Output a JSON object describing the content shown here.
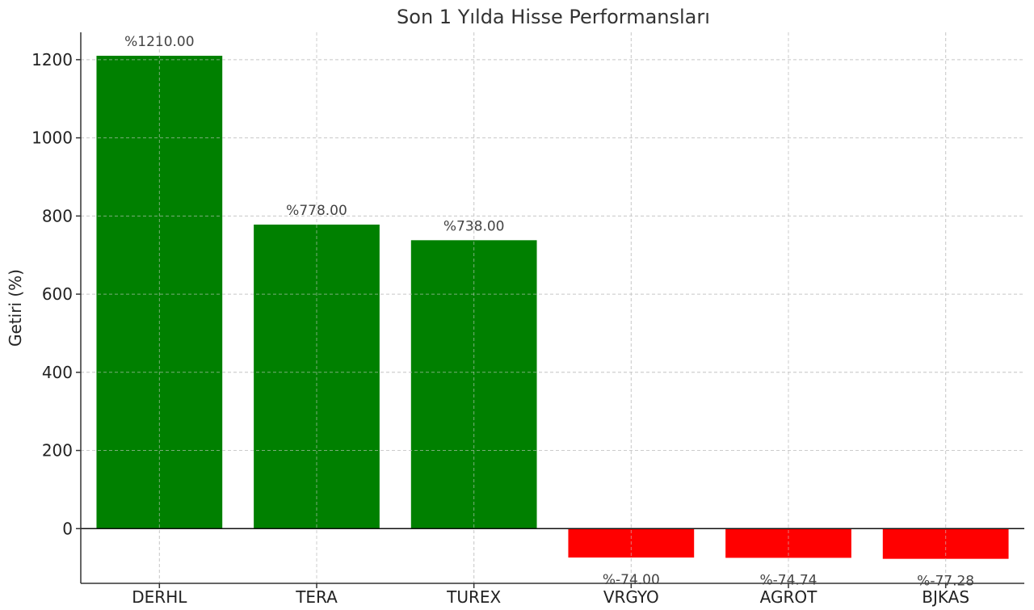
{
  "chart_data": {
    "type": "bar",
    "title": "Son 1 Yılda Hisse Performansları",
    "xlabel": "",
    "ylabel": "Getiri (%)",
    "categories": [
      "DERHL",
      "TERA",
      "TUREX",
      "VRGYO",
      "AGROT",
      "BJKAS"
    ],
    "values": [
      1210.0,
      778.0,
      738.0,
      -74.0,
      -74.74,
      -77.28
    ],
    "value_labels": [
      "%1210.00",
      "%778.00",
      "%738.00",
      "%-74.00",
      "%-74.74",
      "%-77.28"
    ],
    "ylim": [
      -140,
      1270
    ],
    "yticks": [
      0,
      200,
      400,
      600,
      800,
      1000,
      1200
    ],
    "grid": true,
    "colors": {
      "positive": "#008000",
      "negative": "#ff0000"
    }
  }
}
